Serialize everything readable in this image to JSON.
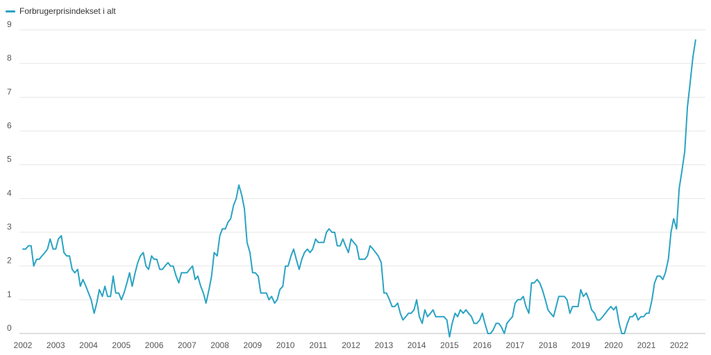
{
  "chart_data": {
    "type": "line",
    "legend_position": "top-left",
    "grid": true,
    "ylim": [
      0,
      9
    ],
    "xlim": [
      2002,
      2022.8
    ],
    "yticks": [
      "0",
      "1",
      "2",
      "3",
      "4",
      "5",
      "6",
      "7",
      "8",
      "9"
    ],
    "xticks": [
      "2002",
      "2003",
      "2004",
      "2005",
      "2006",
      "2007",
      "2008",
      "2009",
      "2010",
      "2011",
      "2012",
      "2013",
      "2014",
      "2015",
      "2016",
      "2017",
      "2018",
      "2019",
      "2020",
      "2021",
      "2022"
    ],
    "series": [
      {
        "name": "Forbrugerprisindekset i alt",
        "color": "#2aa3c3",
        "points": [
          [
            2002.0,
            2.5
          ],
          [
            2002.08,
            2.5
          ],
          [
            2002.17,
            2.6
          ],
          [
            2002.25,
            2.6
          ],
          [
            2002.33,
            2.0
          ],
          [
            2002.42,
            2.2
          ],
          [
            2002.5,
            2.2
          ],
          [
            2002.58,
            2.3
          ],
          [
            2002.67,
            2.4
          ],
          [
            2002.75,
            2.5
          ],
          [
            2002.83,
            2.8
          ],
          [
            2002.92,
            2.5
          ],
          [
            2003.0,
            2.5
          ],
          [
            2003.08,
            2.8
          ],
          [
            2003.17,
            2.9
          ],
          [
            2003.25,
            2.4
          ],
          [
            2003.33,
            2.3
          ],
          [
            2003.42,
            2.3
          ],
          [
            2003.5,
            1.9
          ],
          [
            2003.58,
            1.8
          ],
          [
            2003.67,
            1.9
          ],
          [
            2003.75,
            1.4
          ],
          [
            2003.83,
            1.6
          ],
          [
            2003.92,
            1.4
          ],
          [
            2004.0,
            1.2
          ],
          [
            2004.08,
            1.0
          ],
          [
            2004.17,
            0.6
          ],
          [
            2004.25,
            0.9
          ],
          [
            2004.33,
            1.3
          ],
          [
            2004.42,
            1.1
          ],
          [
            2004.5,
            1.4
          ],
          [
            2004.58,
            1.1
          ],
          [
            2004.67,
            1.1
          ],
          [
            2004.75,
            1.7
          ],
          [
            2004.83,
            1.2
          ],
          [
            2004.92,
            1.2
          ],
          [
            2005.0,
            1.0
          ],
          [
            2005.08,
            1.2
          ],
          [
            2005.17,
            1.5
          ],
          [
            2005.25,
            1.8
          ],
          [
            2005.33,
            1.4
          ],
          [
            2005.42,
            1.8
          ],
          [
            2005.5,
            2.1
          ],
          [
            2005.58,
            2.3
          ],
          [
            2005.67,
            2.4
          ],
          [
            2005.75,
            2.0
          ],
          [
            2005.83,
            1.9
          ],
          [
            2005.92,
            2.3
          ],
          [
            2006.0,
            2.2
          ],
          [
            2006.08,
            2.2
          ],
          [
            2006.17,
            1.9
          ],
          [
            2006.25,
            1.9
          ],
          [
            2006.33,
            2.0
          ],
          [
            2006.42,
            2.1
          ],
          [
            2006.5,
            2.0
          ],
          [
            2006.58,
            2.0
          ],
          [
            2006.67,
            1.7
          ],
          [
            2006.75,
            1.5
          ],
          [
            2006.83,
            1.8
          ],
          [
            2006.92,
            1.8
          ],
          [
            2007.0,
            1.8
          ],
          [
            2007.08,
            1.9
          ],
          [
            2007.17,
            2.0
          ],
          [
            2007.25,
            1.6
          ],
          [
            2007.33,
            1.7
          ],
          [
            2007.42,
            1.4
          ],
          [
            2007.5,
            1.2
          ],
          [
            2007.58,
            0.9
          ],
          [
            2007.67,
            1.3
          ],
          [
            2007.75,
            1.7
          ],
          [
            2007.83,
            2.4
          ],
          [
            2007.92,
            2.3
          ],
          [
            2008.0,
            2.9
          ],
          [
            2008.08,
            3.1
          ],
          [
            2008.17,
            3.1
          ],
          [
            2008.25,
            3.3
          ],
          [
            2008.33,
            3.4
          ],
          [
            2008.42,
            3.8
          ],
          [
            2008.5,
            4.0
          ],
          [
            2008.58,
            4.4
          ],
          [
            2008.67,
            4.1
          ],
          [
            2008.75,
            3.7
          ],
          [
            2008.83,
            2.7
          ],
          [
            2008.92,
            2.4
          ],
          [
            2009.0,
            1.8
          ],
          [
            2009.08,
            1.8
          ],
          [
            2009.17,
            1.7
          ],
          [
            2009.25,
            1.2
          ],
          [
            2009.33,
            1.2
          ],
          [
            2009.42,
            1.2
          ],
          [
            2009.5,
            1.0
          ],
          [
            2009.58,
            1.1
          ],
          [
            2009.67,
            0.9
          ],
          [
            2009.75,
            1.0
          ],
          [
            2009.83,
            1.3
          ],
          [
            2009.92,
            1.4
          ],
          [
            2010.0,
            2.0
          ],
          [
            2010.08,
            2.0
          ],
          [
            2010.17,
            2.3
          ],
          [
            2010.25,
            2.5
          ],
          [
            2010.33,
            2.2
          ],
          [
            2010.42,
            1.9
          ],
          [
            2010.5,
            2.2
          ],
          [
            2010.58,
            2.4
          ],
          [
            2010.67,
            2.5
          ],
          [
            2010.75,
            2.4
          ],
          [
            2010.83,
            2.5
          ],
          [
            2010.92,
            2.8
          ],
          [
            2011.0,
            2.7
          ],
          [
            2011.08,
            2.7
          ],
          [
            2011.17,
            2.7
          ],
          [
            2011.25,
            3.0
          ],
          [
            2011.33,
            3.1
          ],
          [
            2011.42,
            3.0
          ],
          [
            2011.5,
            3.0
          ],
          [
            2011.58,
            2.6
          ],
          [
            2011.67,
            2.6
          ],
          [
            2011.75,
            2.8
          ],
          [
            2011.83,
            2.6
          ],
          [
            2011.92,
            2.4
          ],
          [
            2012.0,
            2.8
          ],
          [
            2012.08,
            2.7
          ],
          [
            2012.17,
            2.6
          ],
          [
            2012.25,
            2.2
          ],
          [
            2012.33,
            2.2
          ],
          [
            2012.42,
            2.2
          ],
          [
            2012.5,
            2.3
          ],
          [
            2012.58,
            2.6
          ],
          [
            2012.67,
            2.5
          ],
          [
            2012.75,
            2.4
          ],
          [
            2012.83,
            2.3
          ],
          [
            2012.92,
            2.1
          ],
          [
            2013.0,
            1.2
          ],
          [
            2013.08,
            1.2
          ],
          [
            2013.17,
            1.0
          ],
          [
            2013.25,
            0.8
          ],
          [
            2013.33,
            0.8
          ],
          [
            2013.42,
            0.9
          ],
          [
            2013.5,
            0.6
          ],
          [
            2013.58,
            0.4
          ],
          [
            2013.67,
            0.5
          ],
          [
            2013.75,
            0.6
          ],
          [
            2013.83,
            0.6
          ],
          [
            2013.92,
            0.7
          ],
          [
            2014.0,
            1.0
          ],
          [
            2014.08,
            0.5
          ],
          [
            2014.17,
            0.3
          ],
          [
            2014.25,
            0.7
          ],
          [
            2014.33,
            0.5
          ],
          [
            2014.42,
            0.6
          ],
          [
            2014.5,
            0.7
          ],
          [
            2014.58,
            0.5
          ],
          [
            2014.67,
            0.5
          ],
          [
            2014.75,
            0.5
          ],
          [
            2014.83,
            0.5
          ],
          [
            2014.92,
            0.4
          ],
          [
            2015.0,
            -0.1
          ],
          [
            2015.08,
            0.3
          ],
          [
            2015.17,
            0.6
          ],
          [
            2015.25,
            0.5
          ],
          [
            2015.33,
            0.7
          ],
          [
            2015.42,
            0.6
          ],
          [
            2015.5,
            0.7
          ],
          [
            2015.58,
            0.6
          ],
          [
            2015.67,
            0.5
          ],
          [
            2015.75,
            0.3
          ],
          [
            2015.83,
            0.3
          ],
          [
            2015.92,
            0.4
          ],
          [
            2016.0,
            0.6
          ],
          [
            2016.08,
            0.3
          ],
          [
            2016.17,
            0.0
          ],
          [
            2016.25,
            0.0
          ],
          [
            2016.33,
            0.1
          ],
          [
            2016.42,
            0.3
          ],
          [
            2016.5,
            0.3
          ],
          [
            2016.58,
            0.2
          ],
          [
            2016.67,
            0.0
          ],
          [
            2016.75,
            0.3
          ],
          [
            2016.83,
            0.4
          ],
          [
            2016.92,
            0.5
          ],
          [
            2017.0,
            0.9
          ],
          [
            2017.08,
            1.0
          ],
          [
            2017.17,
            1.0
          ],
          [
            2017.25,
            1.1
          ],
          [
            2017.33,
            0.8
          ],
          [
            2017.42,
            0.6
          ],
          [
            2017.5,
            1.5
          ],
          [
            2017.58,
            1.5
          ],
          [
            2017.67,
            1.6
          ],
          [
            2017.75,
            1.5
          ],
          [
            2017.83,
            1.3
          ],
          [
            2017.92,
            1.0
          ],
          [
            2018.0,
            0.7
          ],
          [
            2018.08,
            0.6
          ],
          [
            2018.17,
            0.5
          ],
          [
            2018.25,
            0.8
          ],
          [
            2018.33,
            1.1
          ],
          [
            2018.42,
            1.1
          ],
          [
            2018.5,
            1.1
          ],
          [
            2018.58,
            1.0
          ],
          [
            2018.67,
            0.6
          ],
          [
            2018.75,
            0.8
          ],
          [
            2018.83,
            0.8
          ],
          [
            2018.92,
            0.8
          ],
          [
            2019.0,
            1.3
          ],
          [
            2019.08,
            1.1
          ],
          [
            2019.17,
            1.2
          ],
          [
            2019.25,
            1.0
          ],
          [
            2019.33,
            0.7
          ],
          [
            2019.42,
            0.6
          ],
          [
            2019.5,
            0.4
          ],
          [
            2019.58,
            0.4
          ],
          [
            2019.67,
            0.5
          ],
          [
            2019.75,
            0.6
          ],
          [
            2019.83,
            0.7
          ],
          [
            2019.92,
            0.8
          ],
          [
            2020.0,
            0.7
          ],
          [
            2020.08,
            0.8
          ],
          [
            2020.17,
            0.3
          ],
          [
            2020.25,
            0.0
          ],
          [
            2020.33,
            0.0
          ],
          [
            2020.42,
            0.3
          ],
          [
            2020.5,
            0.5
          ],
          [
            2020.58,
            0.5
          ],
          [
            2020.67,
            0.6
          ],
          [
            2020.75,
            0.4
          ],
          [
            2020.83,
            0.5
          ],
          [
            2020.92,
            0.5
          ],
          [
            2021.0,
            0.6
          ],
          [
            2021.08,
            0.6
          ],
          [
            2021.17,
            1.0
          ],
          [
            2021.25,
            1.5
          ],
          [
            2021.33,
            1.7
          ],
          [
            2021.42,
            1.7
          ],
          [
            2021.5,
            1.6
          ],
          [
            2021.58,
            1.8
          ],
          [
            2021.67,
            2.2
          ],
          [
            2021.75,
            3.0
          ],
          [
            2021.83,
            3.4
          ],
          [
            2021.92,
            3.1
          ],
          [
            2022.0,
            4.3
          ],
          [
            2022.08,
            4.8
          ],
          [
            2022.17,
            5.4
          ],
          [
            2022.25,
            6.7
          ],
          [
            2022.33,
            7.4
          ],
          [
            2022.42,
            8.2
          ],
          [
            2022.5,
            8.7
          ]
        ]
      }
    ]
  }
}
